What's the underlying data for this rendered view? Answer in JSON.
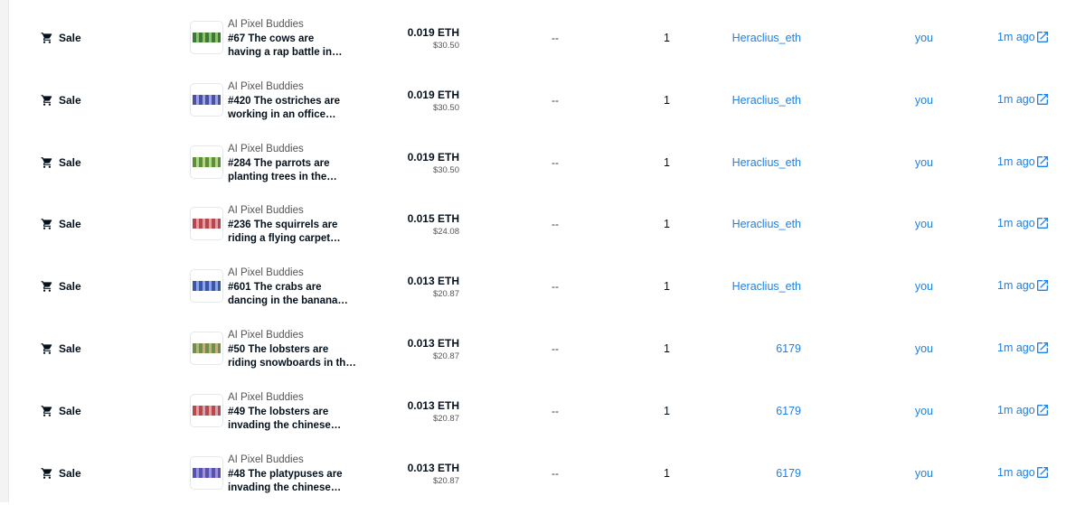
{
  "table": {
    "rows": [
      {
        "event": "Sale",
        "collection": "AI Pixel Buddies",
        "item": [
          "#67 The cows are",
          "having a rap battle in…"
        ],
        "price": "0.019 ETH",
        "usd": "$30.50",
        "change": "--",
        "quantity": "1",
        "from": "Heraclius_eth",
        "to": "you",
        "time": "1m ago"
      },
      {
        "event": "Sale",
        "collection": "AI Pixel Buddies",
        "item": [
          "#420 The ostriches are",
          "working in an office…"
        ],
        "price": "0.019 ETH",
        "usd": "$30.50",
        "change": "--",
        "quantity": "1",
        "from": "Heraclius_eth",
        "to": "you",
        "time": "1m ago"
      },
      {
        "event": "Sale",
        "collection": "AI Pixel Buddies",
        "item": [
          "#284 The parrots are",
          "planting trees in the…"
        ],
        "price": "0.019 ETH",
        "usd": "$30.50",
        "change": "--",
        "quantity": "1",
        "from": "Heraclius_eth",
        "to": "you",
        "time": "1m ago"
      },
      {
        "event": "Sale",
        "collection": "AI Pixel Buddies",
        "item": [
          "#236 The squirrels are",
          "riding a flying carpet…"
        ],
        "price": "0.015 ETH",
        "usd": "$24.08",
        "change": "--",
        "quantity": "1",
        "from": "Heraclius_eth",
        "to": "you",
        "time": "1m ago"
      },
      {
        "event": "Sale",
        "collection": "AI Pixel Buddies",
        "item": [
          "#601 The crabs are",
          "dancing in the banana…"
        ],
        "price": "0.013 ETH",
        "usd": "$20.87",
        "change": "--",
        "quantity": "1",
        "from": "Heraclius_eth",
        "to": "you",
        "time": "1m ago"
      },
      {
        "event": "Sale",
        "collection": "AI Pixel Buddies",
        "item": [
          "#50 The lobsters are",
          "riding snowboards in th…"
        ],
        "price": "0.013 ETH",
        "usd": "$20.87",
        "change": "--",
        "quantity": "1",
        "from": "6179",
        "to": "you",
        "time": "1m ago"
      },
      {
        "event": "Sale",
        "collection": "AI Pixel Buddies",
        "item": [
          "#49 The lobsters are",
          "invading the chinese…"
        ],
        "price": "0.013 ETH",
        "usd": "$20.87",
        "change": "--",
        "quantity": "1",
        "from": "6179",
        "to": "you",
        "time": "1m ago"
      },
      {
        "event": "Sale",
        "collection": "AI Pixel Buddies",
        "item": [
          "#48 The platypuses are",
          "invading the chinese…"
        ],
        "price": "0.013 ETH",
        "usd": "$20.87",
        "change": "--",
        "quantity": "1",
        "from": "6179",
        "to": "you",
        "time": "1m ago"
      }
    ]
  }
}
